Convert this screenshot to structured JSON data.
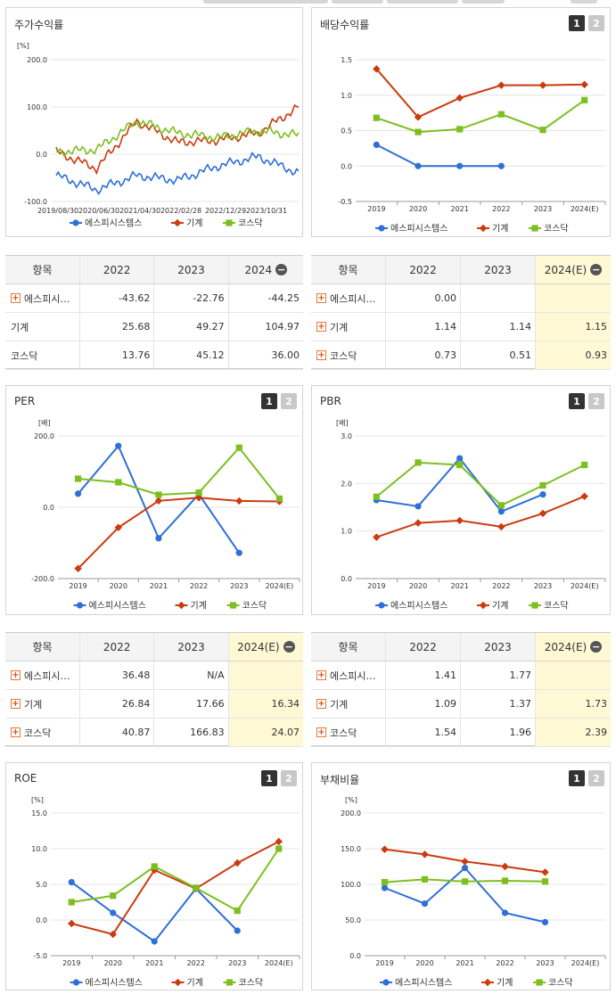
{
  "colors": {
    "company": "#2e6fd8",
    "industry": "#cc3b0e",
    "kosdaq": "#7cbf1f"
  },
  "tabs": [
    "1",
    "2"
  ],
  "legend": {
    "company": "에스피시스템스",
    "industry": "기계",
    "kosdaq": "코스닥"
  },
  "stock_return": {
    "title": "주가수익률",
    "unit": "[%]",
    "y_ticks": [
      "200.0",
      "100.0",
      "0.0",
      "-100.0"
    ],
    "x_ticks": [
      "2019/08/30",
      "2020/06/30",
      "2021/04/30",
      "2022/02/28",
      "2022/12/29",
      "2023/10/31"
    ],
    "chart_data": {
      "type": "line",
      "ylim": [
        -100,
        200
      ],
      "x": [
        "2019/08/30",
        "2020/06/30",
        "2021/04/30",
        "2022/02/28",
        "2022/12/29",
        "2023/10/31",
        "2024"
      ],
      "series": [
        {
          "name": "에스피시스템스",
          "values": [
            -45,
            -75,
            -45,
            -55,
            -25,
            -5,
            -40
          ]
        },
        {
          "name": "기계",
          "values": [
            5,
            -30,
            70,
            25,
            30,
            45,
            100
          ]
        },
        {
          "name": "코스닥",
          "values": [
            5,
            10,
            70,
            45,
            35,
            50,
            40
          ]
        }
      ]
    }
  },
  "dividend": {
    "title": "배당수익률",
    "y_ticks": [
      "1.5",
      "1.0",
      "0.5",
      "0.0",
      "-0.5"
    ],
    "x_ticks": [
      "2019",
      "2020",
      "2021",
      "2022",
      "2023",
      "2024(E)"
    ],
    "chart_data": {
      "type": "line",
      "ylim": [
        -0.5,
        1.5
      ],
      "x": [
        "2019",
        "2020",
        "2021",
        "2022",
        "2023",
        "2024(E)"
      ],
      "series": [
        {
          "name": "에스피시스템스",
          "values": [
            0.3,
            0.0,
            0.0,
            0.0,
            null,
            null
          ]
        },
        {
          "name": "기계",
          "values": [
            1.37,
            0.69,
            0.96,
            1.14,
            1.14,
            1.15
          ]
        },
        {
          "name": "코스닥",
          "values": [
            0.68,
            0.48,
            0.52,
            0.73,
            0.51,
            0.93
          ]
        }
      ]
    }
  },
  "table_return": {
    "headers": [
      "항목",
      "2022",
      "2023",
      "2024"
    ],
    "rows": [
      {
        "name": "에스피시…",
        "values": [
          "-43.62",
          "-22.76",
          "-44.25"
        ],
        "plus": true
      },
      {
        "name": "기계",
        "values": [
          "25.68",
          "49.27",
          "104.97"
        ],
        "plus": false
      },
      {
        "name": "코스닥",
        "values": [
          "13.76",
          "45.12",
          "36.00"
        ],
        "plus": false
      }
    ]
  },
  "table_dividend": {
    "headers": [
      "항목",
      "2022",
      "2023",
      "2024(E)"
    ],
    "rows": [
      {
        "name": "에스피시…",
        "values": [
          "0.00",
          "",
          ""
        ],
        "plus": true
      },
      {
        "name": "기계",
        "values": [
          "1.14",
          "1.14",
          "1.15"
        ],
        "plus": true
      },
      {
        "name": "코스닥",
        "values": [
          "0.73",
          "0.51",
          "0.93"
        ],
        "plus": true
      }
    ]
  },
  "per": {
    "title": "PER",
    "unit": "[배]",
    "y_ticks": [
      "200.0",
      "0.0",
      "-200.0"
    ],
    "x_ticks": [
      "2019",
      "2020",
      "2021",
      "2022",
      "2023",
      "2024(E)"
    ],
    "chart_data": {
      "type": "line",
      "ylim": [
        -200,
        200
      ],
      "x": [
        "2019",
        "2020",
        "2021",
        "2022",
        "2023",
        "2024(E)"
      ],
      "series": [
        {
          "name": "에스피시스템스",
          "values": [
            38,
            172,
            -87,
            36.48,
            -128,
            null
          ]
        },
        {
          "name": "기계",
          "values": [
            -172,
            -57,
            18,
            26.84,
            17.66,
            16.34
          ]
        },
        {
          "name": "코스닥",
          "values": [
            80,
            70,
            35,
            40.87,
            166.83,
            24.07
          ]
        }
      ]
    }
  },
  "pbr": {
    "title": "PBR",
    "unit": "[배]",
    "y_ticks": [
      "3.0",
      "2.0",
      "1.0",
      "0.0"
    ],
    "x_ticks": [
      "2019",
      "2020",
      "2021",
      "2022",
      "2023",
      "2024(E)"
    ],
    "chart_data": {
      "type": "line",
      "ylim": [
        0,
        3
      ],
      "x": [
        "2019",
        "2020",
        "2021",
        "2022",
        "2023",
        "2024(E)"
      ],
      "series": [
        {
          "name": "에스피시스템스",
          "values": [
            1.65,
            1.52,
            2.53,
            1.41,
            1.77,
            null
          ]
        },
        {
          "name": "기계",
          "values": [
            0.87,
            1.17,
            1.22,
            1.09,
            1.37,
            1.73
          ]
        },
        {
          "name": "코스닥",
          "values": [
            1.72,
            2.44,
            2.39,
            1.54,
            1.96,
            2.39
          ]
        }
      ]
    }
  },
  "table_per": {
    "headers": [
      "항목",
      "2022",
      "2023",
      "2024(E)"
    ],
    "rows": [
      {
        "name": "에스피시…",
        "values": [
          "36.48",
          "N/A",
          ""
        ],
        "plus": true
      },
      {
        "name": "기계",
        "values": [
          "26.84",
          "17.66",
          "16.34"
        ],
        "plus": true
      },
      {
        "name": "코스닥",
        "values": [
          "40.87",
          "166.83",
          "24.07"
        ],
        "plus": true
      }
    ]
  },
  "table_pbr": {
    "headers": [
      "항목",
      "2022",
      "2023",
      "2024(E)"
    ],
    "rows": [
      {
        "name": "에스피시…",
        "values": [
          "1.41",
          "1.77",
          ""
        ],
        "plus": true
      },
      {
        "name": "기계",
        "values": [
          "1.09",
          "1.37",
          "1.73"
        ],
        "plus": true
      },
      {
        "name": "코스닥",
        "values": [
          "1.54",
          "1.96",
          "2.39"
        ],
        "plus": true
      }
    ]
  },
  "roe": {
    "title": "ROE",
    "unit": "[%]",
    "y_ticks": [
      "15.0",
      "10.0",
      "5.0",
      "0.0",
      "-5.0"
    ],
    "x_ticks": [
      "2019",
      "2020",
      "2021",
      "2022",
      "2023",
      "2024(E)"
    ],
    "chart_data": {
      "type": "line",
      "ylim": [
        -5,
        15
      ],
      "x": [
        "2019",
        "2020",
        "2021",
        "2022",
        "2023",
        "2024(E)"
      ],
      "series": [
        {
          "name": "에스피시스템스",
          "values": [
            5.3,
            1.0,
            -3.0,
            4.4,
            -1.5,
            null
          ]
        },
        {
          "name": "기계",
          "values": [
            -0.5,
            -2.0,
            7.0,
            4.4,
            8.0,
            11.0
          ]
        },
        {
          "name": "코스닥",
          "values": [
            2.5,
            3.4,
            7.5,
            4.5,
            1.3,
            10.0
          ]
        }
      ]
    }
  },
  "debt": {
    "title": "부채비율",
    "unit": "[%]",
    "y_ticks": [
      "200.0",
      "150.0",
      "100.0",
      "50.0",
      "0.0"
    ],
    "x_ticks": [
      "2019",
      "2020",
      "2021",
      "2022",
      "2023",
      "2024(E)"
    ],
    "chart_data": {
      "type": "line",
      "ylim": [
        0,
        200
      ],
      "x": [
        "2019",
        "2020",
        "2021",
        "2022",
        "2023",
        "2024(E)"
      ],
      "series": [
        {
          "name": "에스피시스템스",
          "values": [
            95,
            73,
            123,
            60,
            47,
            null
          ]
        },
        {
          "name": "기계",
          "values": [
            149,
            142,
            132,
            125,
            117,
            null
          ]
        },
        {
          "name": "코스닥",
          "values": [
            103,
            107,
            104,
            105,
            104,
            null
          ]
        }
      ]
    }
  }
}
